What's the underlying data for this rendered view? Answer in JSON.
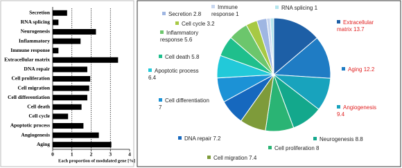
{
  "chart_data": [
    {
      "type": "barh",
      "xlabel": "Each proportion of modulated gene [%]",
      "categories": [
        "Secretion",
        "RNA splicing",
        "Neurogenesis",
        "Inflammatory",
        "Immune response",
        "Extracellular matrix",
        "DNA repair",
        "Cell proliferation",
        "Cell migration",
        "Cell differentiation",
        "Cell death",
        "Cell cycle",
        "Apoptotic process",
        "Angiogenesis",
        "Aging"
      ],
      "values": [
        0.75,
        0.3,
        2.25,
        1.45,
        0.3,
        3.4,
        1.8,
        1.95,
        1.9,
        1.8,
        1.5,
        0.8,
        1.6,
        2.4,
        3.05
      ],
      "color": "#000000",
      "xlim": [
        0,
        4
      ],
      "xticks": [
        0,
        1,
        2,
        3,
        4
      ],
      "grid": true
    },
    {
      "type": "pie",
      "categories": [
        "Extracellular matrix",
        "Aging",
        "Angiogenesis",
        "Neurogenesis",
        "Cell proliferation",
        "Cell migration",
        "DNA repair",
        "Cell differentiation",
        "Apoptotic process",
        "Cell death",
        "Inflammatory response",
        "Cell cycle",
        "Secretion",
        "Immune response",
        "RNA splicing"
      ],
      "values": [
        13.7,
        12.2,
        9.4,
        8.8,
        8.0,
        7.4,
        7.2,
        7.0,
        6.4,
        5.8,
        5.6,
        3.2,
        2.8,
        1.0,
        1.0
      ],
      "colors": [
        "#1d5fa6",
        "#1f7cc4",
        "#18a3bd",
        "#13a88c",
        "#2ab474",
        "#7e9b3a",
        "#1668be",
        "#1c92d6",
        "#22c9d9",
        "#1fbf8c",
        "#6cc66c",
        "#a7c944",
        "#9fb6e2",
        "#c7d6ef",
        "#b5e6ee"
      ],
      "label_colors": [
        "#e02020",
        "#e02020",
        "#e02020",
        "#222222",
        "#222222",
        "#222222",
        "#222222",
        "#222222",
        "#222222",
        "#222222",
        "#222222",
        "#222222",
        "#222222",
        "#222222",
        "#222222"
      ]
    }
  ]
}
